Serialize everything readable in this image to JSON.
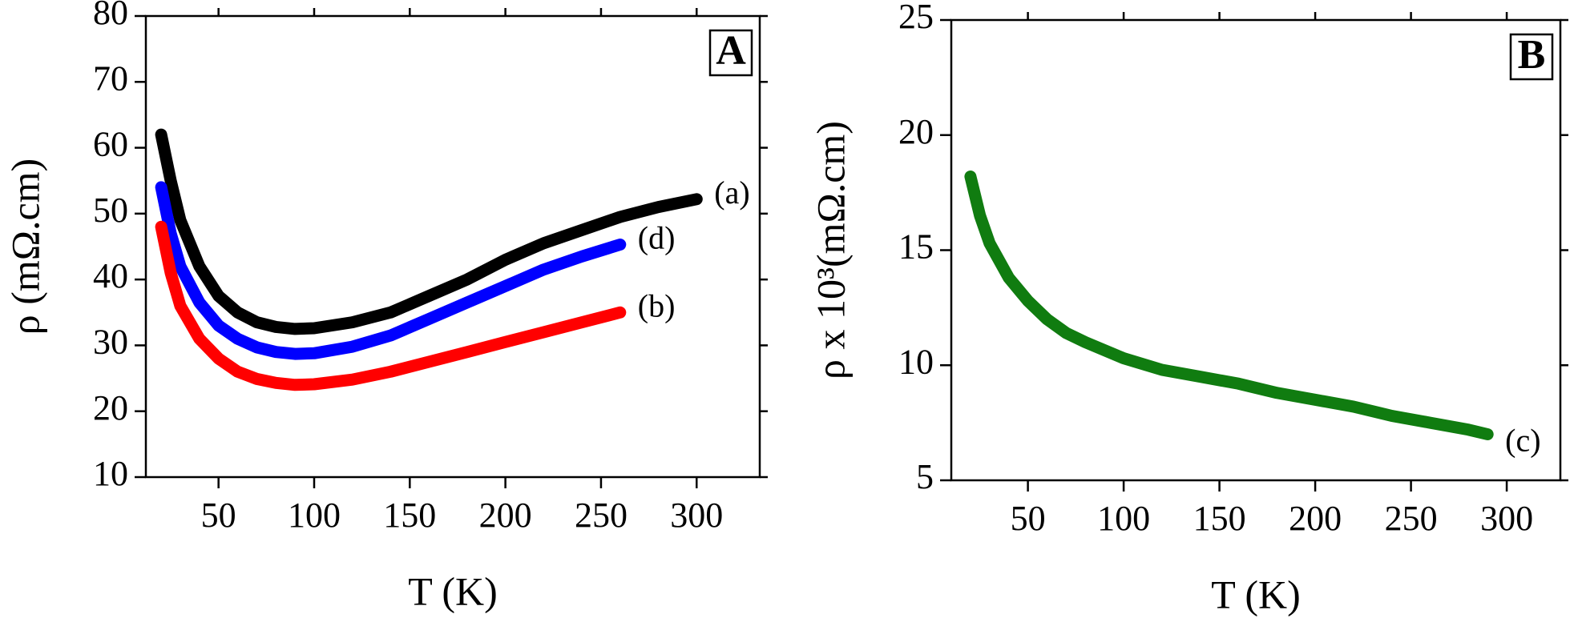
{
  "chart_data": [
    {
      "type": "line",
      "panel_label": "A",
      "xlabel": "T (K)",
      "ylabel": "ρ (mΩ.cm)",
      "xlim": [
        12,
        333
      ],
      "xticks": [
        50,
        100,
        150,
        200,
        250,
        300
      ],
      "ylim": [
        10,
        80
      ],
      "yticks": [
        10,
        20,
        30,
        40,
        50,
        60,
        70,
        80
      ],
      "series": [
        {
          "name": "(a)",
          "color": "#000000",
          "x": [
            20,
            25,
            30,
            40,
            50,
            60,
            70,
            80,
            90,
            100,
            120,
            140,
            160,
            180,
            200,
            220,
            240,
            260,
            280,
            300
          ],
          "values": [
            62,
            55,
            49,
            42,
            37.5,
            35,
            33.5,
            32.8,
            32.5,
            32.6,
            33.5,
            35,
            37.5,
            40,
            43,
            45.5,
            47.5,
            49.5,
            51,
            52.2
          ]
        },
        {
          "name": "(d)",
          "color": "#0000ff",
          "x": [
            20,
            25,
            30,
            40,
            50,
            60,
            70,
            80,
            90,
            100,
            120,
            140,
            160,
            180,
            200,
            220,
            240,
            260
          ],
          "values": [
            54,
            47,
            42,
            36.5,
            33,
            31,
            29.7,
            29,
            28.7,
            28.8,
            29.8,
            31.5,
            34,
            36.5,
            39,
            41.5,
            43.5,
            45.3
          ]
        },
        {
          "name": "(b)",
          "color": "#ff0000",
          "x": [
            20,
            25,
            30,
            40,
            50,
            60,
            70,
            80,
            90,
            100,
            120,
            140,
            160,
            180,
            200,
            220,
            240,
            260
          ],
          "values": [
            48,
            41,
            36,
            31,
            28,
            26,
            24.9,
            24.3,
            24,
            24.1,
            24.8,
            26,
            27.5,
            29,
            30.5,
            32,
            33.5,
            35
          ]
        }
      ]
    },
    {
      "type": "line",
      "panel_label": "B",
      "xlabel": "T (K)",
      "ylabel": "ρ x 10³(mΩ.cm)",
      "xlim": [
        10,
        328
      ],
      "xticks": [
        50,
        100,
        150,
        200,
        250,
        300
      ],
      "ylim": [
        5,
        25
      ],
      "yticks": [
        5,
        10,
        15,
        20,
        25
      ],
      "series": [
        {
          "name": "(c)",
          "color": "#107c10",
          "x": [
            20,
            25,
            30,
            40,
            50,
            60,
            70,
            80,
            100,
            120,
            140,
            160,
            180,
            200,
            220,
            240,
            260,
            280,
            290
          ],
          "values": [
            18.2,
            16.5,
            15.3,
            13.8,
            12.8,
            12,
            11.4,
            11,
            10.3,
            9.8,
            9.5,
            9.2,
            8.8,
            8.5,
            8.2,
            7.8,
            7.5,
            7.2,
            7.0
          ]
        }
      ]
    }
  ]
}
